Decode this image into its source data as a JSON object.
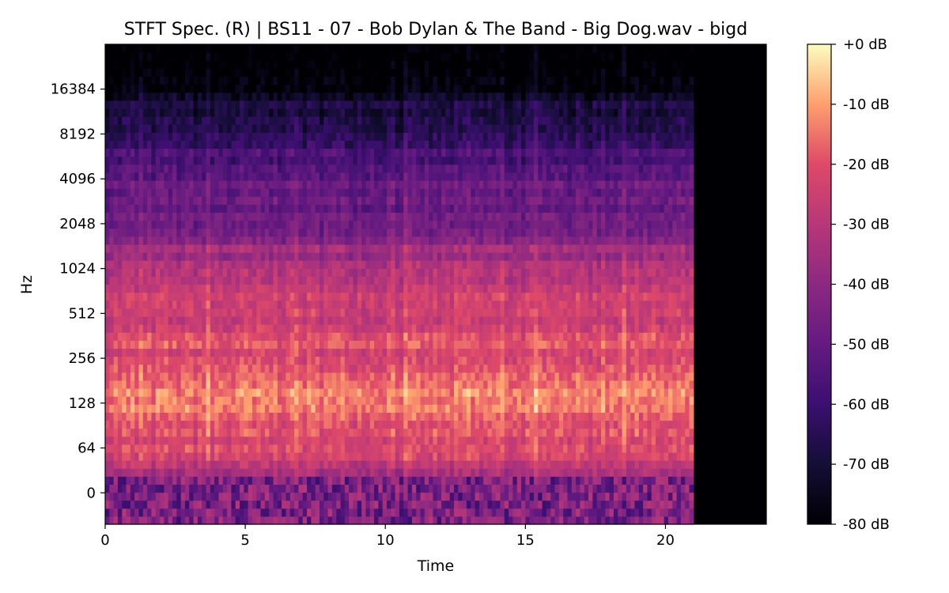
{
  "chart_data": {
    "type": "heatmap",
    "title": "STFT Spec. (R) | BS11 - 07 - Bob Dylan & The Band - Big Dog.wav - bigd",
    "xlabel": "Time",
    "ylabel": "Hz",
    "x_scale": "linear",
    "y_scale": "log2",
    "xlim": [
      0,
      23.6
    ],
    "x_ticks": [
      0,
      5,
      10,
      15,
      20
    ],
    "x_tick_labels": [
      "0",
      "5",
      "10",
      "15",
      "20"
    ],
    "y_ticks": [
      0,
      64,
      128,
      256,
      512,
      1024,
      2048,
      4096,
      8192,
      16384
    ],
    "y_tick_labels": [
      "0",
      "64",
      "128",
      "256",
      "512",
      "1024",
      "2048",
      "4096",
      "8192",
      "16384"
    ],
    "audio_end_time": 21.0,
    "colormap": "magma",
    "colorbar": {
      "label_unit": "dB",
      "range": [
        -80,
        0
      ],
      "ticks": [
        0,
        -10,
        -20,
        -30,
        -40,
        -50,
        -60,
        -70,
        -80
      ],
      "tick_labels": [
        "+0 dB",
        "-10 dB",
        "-20 dB",
        "-30 dB",
        "-40 dB",
        "-50 dB",
        "-60 dB",
        "-70 dB",
        "-80 dB"
      ]
    },
    "bands": [
      {
        "band": "0",
        "level_db": -45
      },
      {
        "band": "64",
        "level_db": -22
      },
      {
        "band": "128",
        "level_db": -14
      },
      {
        "band": "256",
        "level_db": -22
      },
      {
        "band": "512",
        "level_db": -24
      },
      {
        "band": "1024",
        "level_db": -32
      },
      {
        "band": "2048",
        "level_db": -45
      },
      {
        "band": "4096",
        "level_db": -52
      },
      {
        "band": "8192",
        "level_db": -62
      },
      {
        "band": "16384",
        "level_db": -76
      }
    ],
    "legend": "colorbar-right",
    "grid": false
  }
}
